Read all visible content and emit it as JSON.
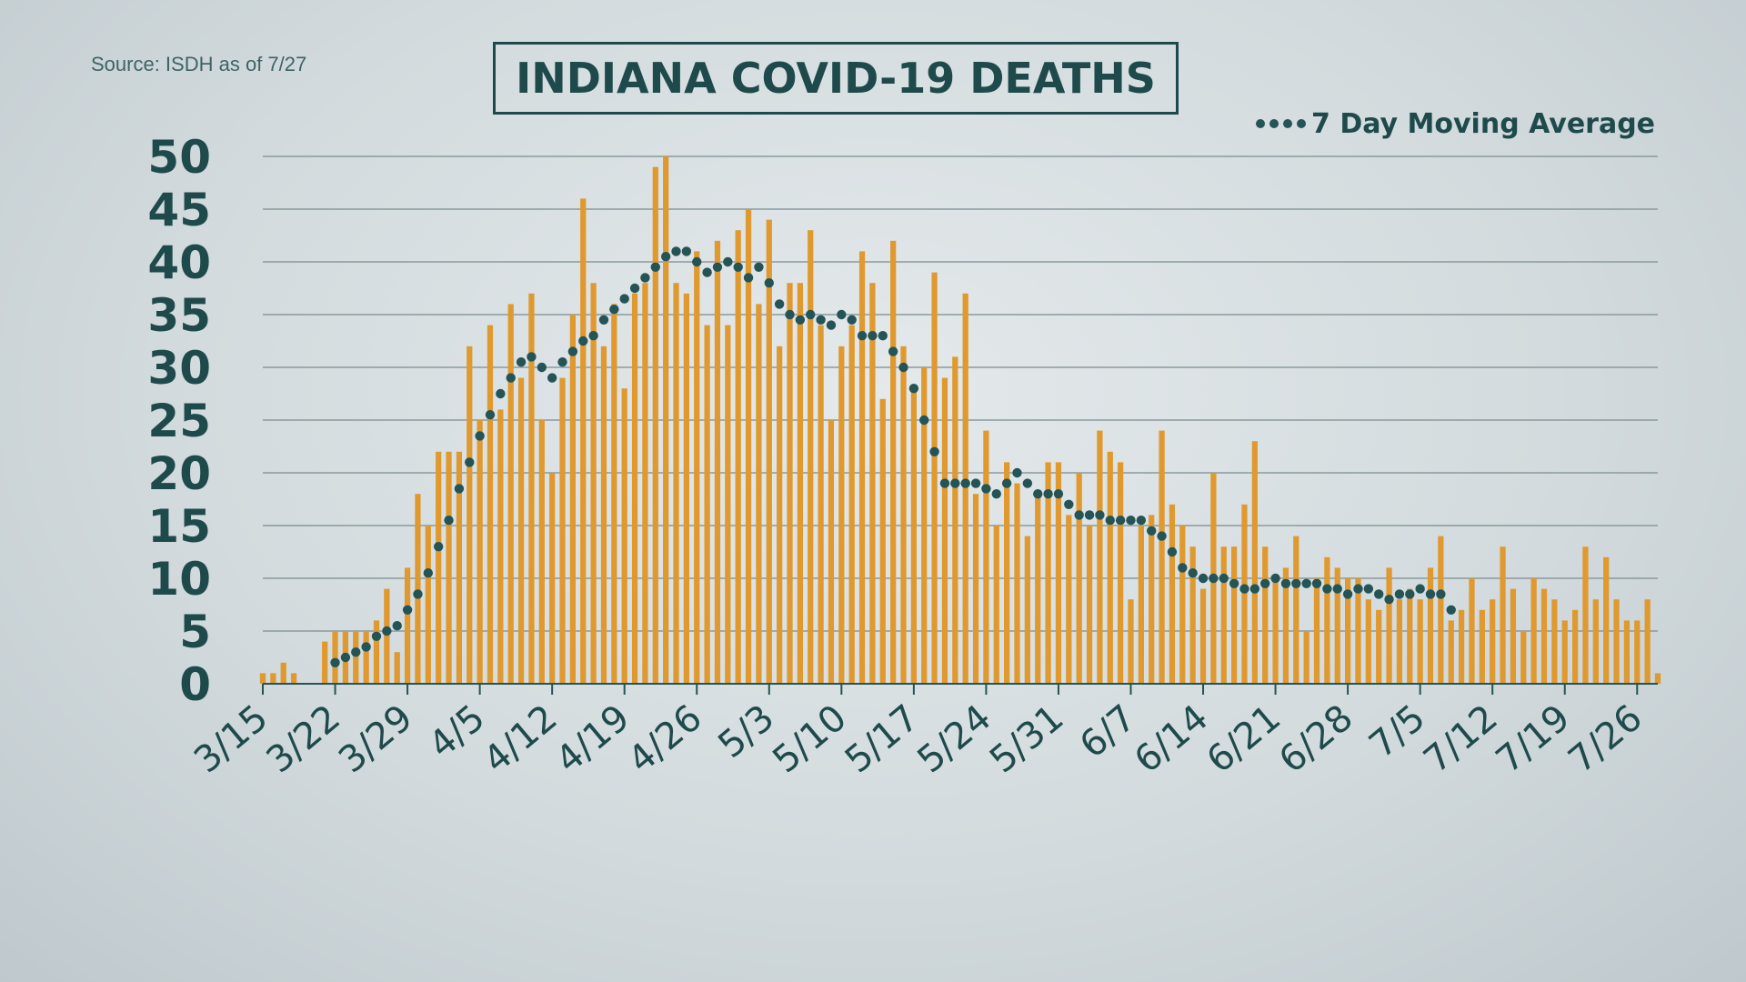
{
  "source": "Source: ISDH as of 7/27",
  "colors": {
    "bar": "#e0992e",
    "avg": "#245456",
    "grid": "#8a9a9e",
    "text": "#1f4a4c"
  },
  "chart_data": {
    "type": "bar",
    "title": "INDIANA COVID-19 DEATHS",
    "xlabel": "",
    "ylabel": "",
    "ylim": [
      0,
      50
    ],
    "yticks": [
      "0",
      "5",
      "10",
      "15",
      "20",
      "25",
      "30",
      "35",
      "40",
      "45",
      "50"
    ],
    "x_start": "3/15",
    "xticks": [
      "3/15",
      "3/22",
      "3/29",
      "4/5",
      "4/12",
      "4/19",
      "4/26",
      "5/3",
      "5/10",
      "5/17",
      "5/24",
      "5/31",
      "6/7",
      "6/14",
      "6/21",
      "6/28",
      "7/5",
      "7/12",
      "7/19",
      "7/26"
    ],
    "grid": true,
    "legend": "top-right",
    "series": [
      {
        "name": "",
        "kind": "bar",
        "values": [
          1,
          1,
          2,
          1,
          0,
          0,
          4,
          5,
          5,
          5,
          5,
          6,
          9,
          3,
          11,
          18,
          15,
          22,
          22,
          22,
          32,
          25,
          34,
          26,
          36,
          29,
          37,
          25,
          20,
          29,
          35,
          46,
          38,
          32,
          36,
          28,
          37,
          38,
          49,
          50,
          38,
          37,
          41,
          34,
          42,
          34,
          43,
          45,
          36,
          44,
          32,
          38,
          38,
          43,
          34,
          25,
          32,
          34,
          41,
          38,
          27,
          42,
          32,
          28,
          30,
          39,
          29,
          31,
          37,
          18,
          24,
          15,
          21,
          19,
          14,
          18,
          21,
          21,
          16,
          20,
          15,
          24,
          22,
          21,
          8,
          15,
          16,
          24,
          17,
          15,
          13,
          9,
          20,
          13,
          13,
          17,
          23,
          13,
          10,
          11,
          14,
          5,
          10,
          12,
          11,
          10,
          10,
          8,
          7,
          11,
          8,
          9,
          8,
          11,
          14,
          6,
          7,
          10,
          7,
          8,
          13,
          9,
          5,
          10,
          9,
          8,
          6,
          7,
          13,
          8,
          12,
          8,
          6,
          6,
          8,
          1
        ]
      },
      {
        "name": "7 Day Moving Average",
        "kind": "dots",
        "start_index": 7,
        "values": [
          2,
          2.5,
          3,
          3.5,
          4.5,
          5,
          5.5,
          7,
          8.5,
          10.5,
          13,
          15.5,
          18.5,
          21,
          23.5,
          25.5,
          27.5,
          29,
          30.5,
          31,
          30,
          29,
          30.5,
          31.5,
          32.5,
          33,
          34.5,
          35.5,
          36.5,
          37.5,
          38.5,
          39.5,
          40.5,
          41,
          41,
          40,
          39,
          39.5,
          40,
          39.5,
          38.5,
          39.5,
          38,
          36,
          35,
          34.5,
          35,
          34.5,
          34,
          35,
          34.5,
          33,
          33,
          33,
          31.5,
          30,
          28,
          25,
          22,
          19,
          19,
          19,
          19,
          18.5,
          18,
          19,
          20,
          19,
          18,
          18,
          18,
          17,
          16,
          16,
          16,
          15.5,
          15.5,
          15.5,
          15.5,
          14.5,
          14,
          12.5,
          11,
          10.5,
          10,
          10,
          10,
          9.5,
          9,
          9,
          9.5,
          10,
          9.5,
          9.5,
          9.5,
          9.5,
          9,
          9,
          8.5,
          9,
          9,
          8.5,
          8,
          8.5,
          8.5,
          9,
          8.5,
          8.5,
          7
        ]
      }
    ]
  }
}
